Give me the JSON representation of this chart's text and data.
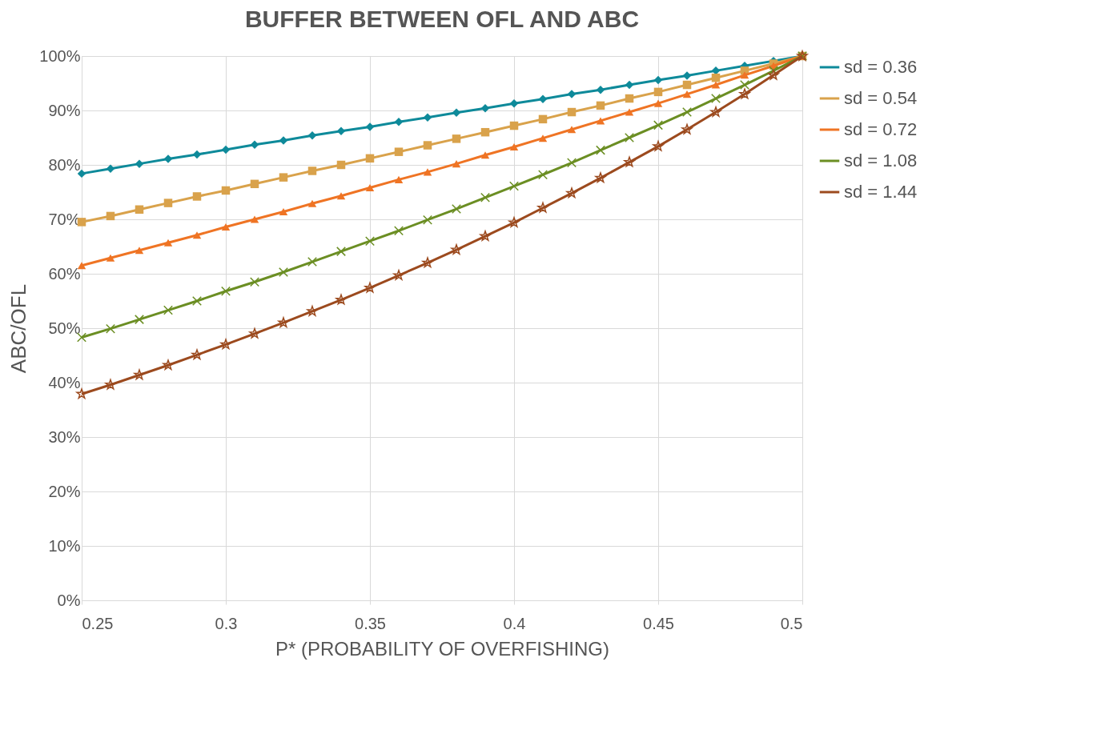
{
  "chart_data": {
    "type": "line",
    "title": "BUFFER BETWEEN OFL AND ABC",
    "xlabel": "P* (PROBABILITY OF OVERFISHING)",
    "ylabel": "ABC/OFL",
    "x": [
      0.25,
      0.26,
      0.27,
      0.28,
      0.29,
      0.3,
      0.31,
      0.32,
      0.33,
      0.34,
      0.35,
      0.36,
      0.37,
      0.38,
      0.39,
      0.4,
      0.41,
      0.42,
      0.43,
      0.44,
      0.45,
      0.46,
      0.47,
      0.48,
      0.49,
      0.5
    ],
    "series": [
      {
        "name": "sd = 0.36",
        "color": "#0e8a9a",
        "marker": "diamond",
        "values": [
          78.4,
          79.3,
          80.2,
          81.1,
          81.9,
          82.8,
          83.7,
          84.5,
          85.4,
          86.2,
          87.0,
          87.9,
          88.7,
          89.6,
          90.4,
          91.3,
          92.1,
          93.0,
          93.8,
          94.7,
          95.6,
          96.4,
          97.3,
          98.2,
          99.1,
          100
        ]
      },
      {
        "name": "sd = 0.54",
        "color": "#d9a24b",
        "marker": "square",
        "values": [
          69.5,
          70.6,
          71.8,
          73.0,
          74.2,
          75.3,
          76.5,
          77.7,
          78.9,
          80.0,
          81.2,
          82.4,
          83.6,
          84.8,
          86.0,
          87.2,
          88.4,
          89.7,
          90.9,
          92.2,
          93.4,
          94.7,
          96.0,
          97.3,
          98.6,
          100
        ]
      },
      {
        "name": "sd = 0.72",
        "color": "#ef7424",
        "marker": "triangle",
        "values": [
          61.5,
          62.9,
          64.3,
          65.7,
          67.1,
          68.6,
          70.0,
          71.4,
          72.9,
          74.3,
          75.8,
          77.3,
          78.7,
          80.2,
          81.8,
          83.3,
          84.9,
          86.5,
          88.1,
          89.7,
          91.3,
          93.0,
          94.7,
          96.5,
          98.2,
          100
        ]
      },
      {
        "name": "sd = 1.08",
        "color": "#6b8e23",
        "marker": "cross",
        "values": [
          48.3,
          49.9,
          51.6,
          53.3,
          55.0,
          56.8,
          58.5,
          60.3,
          62.2,
          64.1,
          66.0,
          67.9,
          69.9,
          71.9,
          74.0,
          76.1,
          78.2,
          80.4,
          82.7,
          85.0,
          87.3,
          89.7,
          92.2,
          94.7,
          97.3,
          100
        ]
      },
      {
        "name": "sd = 1.44",
        "color": "#9c4a1e",
        "marker": "star",
        "values": [
          37.9,
          39.6,
          41.4,
          43.2,
          45.1,
          47.0,
          49.0,
          51.0,
          53.1,
          55.2,
          57.4,
          59.7,
          62.0,
          64.4,
          66.9,
          69.4,
          72.1,
          74.8,
          77.6,
          80.5,
          83.4,
          86.5,
          89.7,
          93.0,
          96.5,
          100
        ]
      }
    ],
    "xlim": [
      0.25,
      0.5
    ],
    "xticks": [
      0.25,
      0.3,
      0.35,
      0.4,
      0.45,
      0.5
    ],
    "ylim": [
      0,
      100
    ],
    "yticks": [
      {
        "value": 0,
        "label": "0%"
      },
      {
        "value": 10,
        "label": "10%"
      },
      {
        "value": 20,
        "label": "20%"
      },
      {
        "value": 30,
        "label": "30%"
      },
      {
        "value": 40,
        "label": "40%"
      },
      {
        "value": 50,
        "label": "50%"
      },
      {
        "value": 60,
        "label": "60%"
      },
      {
        "value": 70,
        "label": "70%"
      },
      {
        "value": 80,
        "label": "80%"
      },
      {
        "value": 90,
        "label": "90%"
      },
      {
        "value": 100,
        "label": "100%"
      }
    ],
    "grid": true,
    "legend": "right",
    "line_style": "solid"
  }
}
